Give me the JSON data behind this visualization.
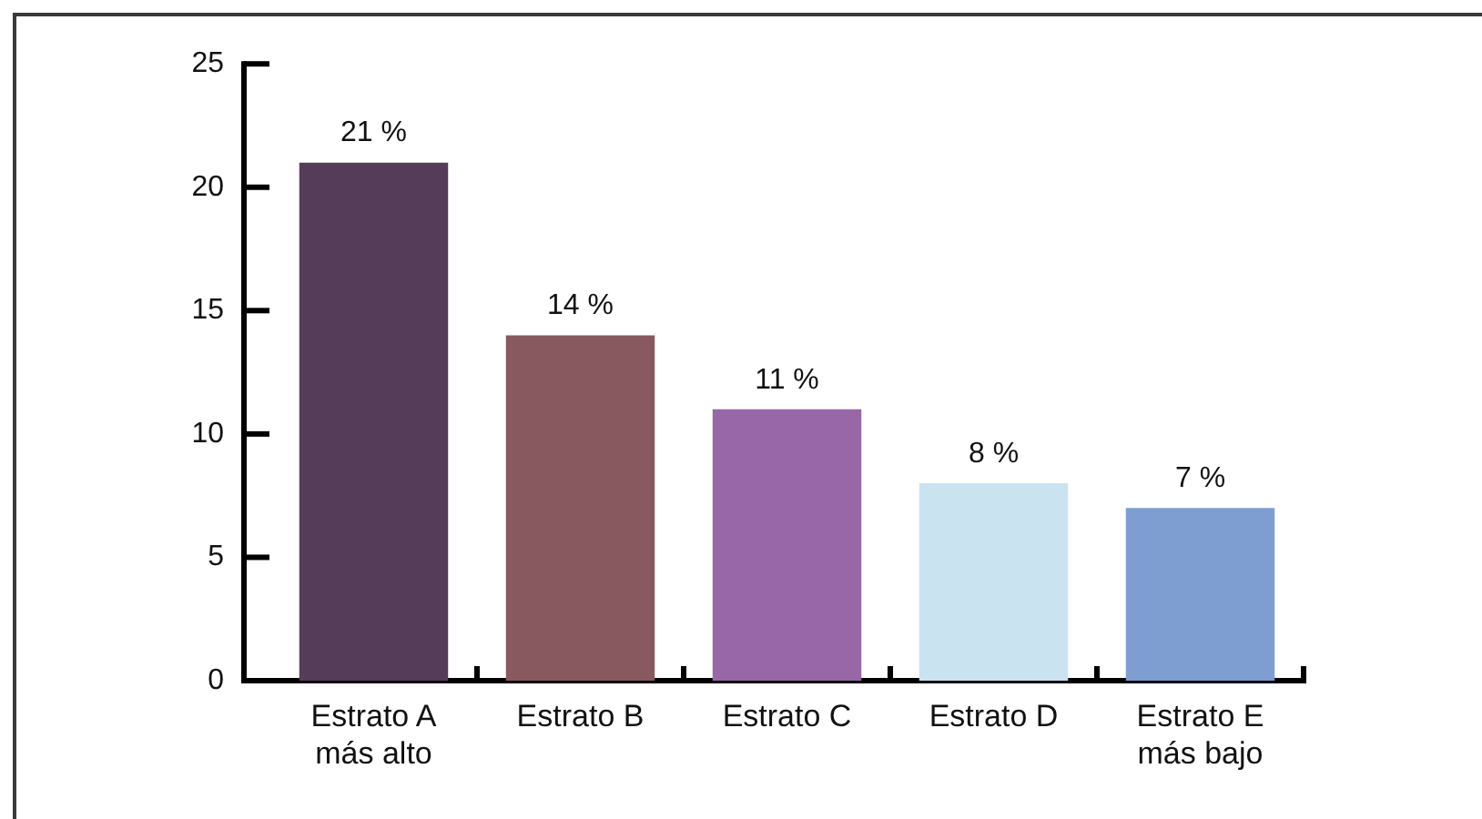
{
  "chart_data": {
    "type": "bar",
    "categories": [
      "Estrato A\nmás alto",
      "Estrato B",
      "Estrato C",
      "Estrato D",
      "Estrato E\nmás bajo"
    ],
    "values": [
      21,
      14,
      11,
      8,
      7
    ],
    "colors": [
      "#553c58",
      "#895960",
      "#9867a8",
      "#c9e3f1",
      "#7e9dd1"
    ],
    "value_labels": [
      "21 %",
      "14 %",
      "11 %",
      "8 %",
      "7 %"
    ],
    "ylim": [
      0,
      25
    ],
    "yticks": [
      0,
      5,
      10,
      15,
      20,
      25
    ]
  }
}
